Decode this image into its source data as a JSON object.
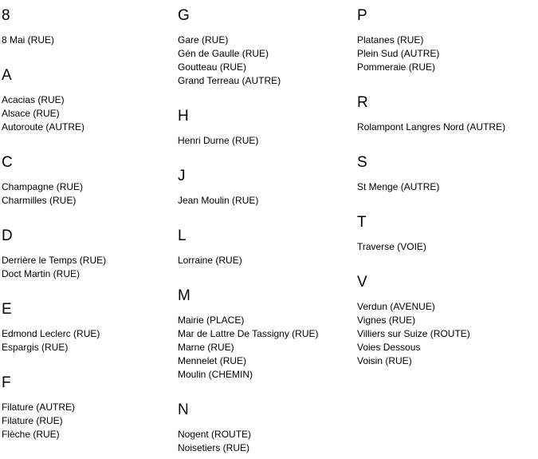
{
  "page": {
    "background": "#ffffff",
    "text_color": "#000000",
    "kind": "street-name-index"
  },
  "index": {
    "columns": [
      {
        "sections": [
          {
            "letter": "8",
            "entries": [
              "8 Mai (RUE)"
            ]
          },
          {
            "letter": "A",
            "entries": [
              "Acacias (RUE)",
              "Alsace (RUE)",
              "Autoroute (AUTRE)"
            ]
          },
          {
            "letter": "C",
            "entries": [
              "Champagne (RUE)",
              "Charmilles (RUE)"
            ]
          },
          {
            "letter": "D",
            "entries": [
              "Derrière le Temps (RUE)",
              "Doct Martin (RUE)"
            ]
          },
          {
            "letter": "E",
            "entries": [
              "Edmond Leclerc (RUE)",
              "Espargis (RUE)"
            ]
          },
          {
            "letter": "F",
            "entries": [
              "Filature (AUTRE)",
              "Filature (RUE)",
              "Flèche (RUE)"
            ]
          }
        ]
      },
      {
        "sections": [
          {
            "letter": "G",
            "entries": [
              "Gare (RUE)",
              "Gén de Gaulle (RUE)",
              "Goutteau (RUE)",
              "Grand Terreau (AUTRE)"
            ]
          },
          {
            "letter": "H",
            "entries": [
              "Henri Durne (RUE)"
            ]
          },
          {
            "letter": "J",
            "entries": [
              "Jean Moulin (RUE)"
            ]
          },
          {
            "letter": "L",
            "entries": [
              "Lorraine (RUE)"
            ]
          },
          {
            "letter": "M",
            "entries": [
              "Mairie (PLACE)",
              "Mar de Lattre De Tassigny (RUE)",
              "Marne (RUE)",
              "Mennelet (RUE)",
              "Moulin (CHEMIN)"
            ]
          },
          {
            "letter": "N",
            "entries": [
              "Nogent (ROUTE)",
              "Noisetiers (RUE)"
            ]
          }
        ]
      },
      {
        "sections": [
          {
            "letter": "P",
            "entries": [
              "Platanes (RUE)",
              "Plein Sud (AUTRE)",
              "Pommeraie (RUE)"
            ]
          },
          {
            "letter": "R",
            "entries": [
              "Rolampont Langres Nord (AUTRE)"
            ]
          },
          {
            "letter": "S",
            "entries": [
              "St Menge (AUTRE)"
            ]
          },
          {
            "letter": "T",
            "entries": [
              "Traverse (VOIE)"
            ]
          },
          {
            "letter": "V",
            "entries": [
              "Verdun (AVENUE)",
              "Vignes (RUE)",
              "Villiers sur Suize (ROUTE)",
              "Voies Dessous",
              "Voisin (RUE)"
            ]
          }
        ]
      }
    ]
  }
}
